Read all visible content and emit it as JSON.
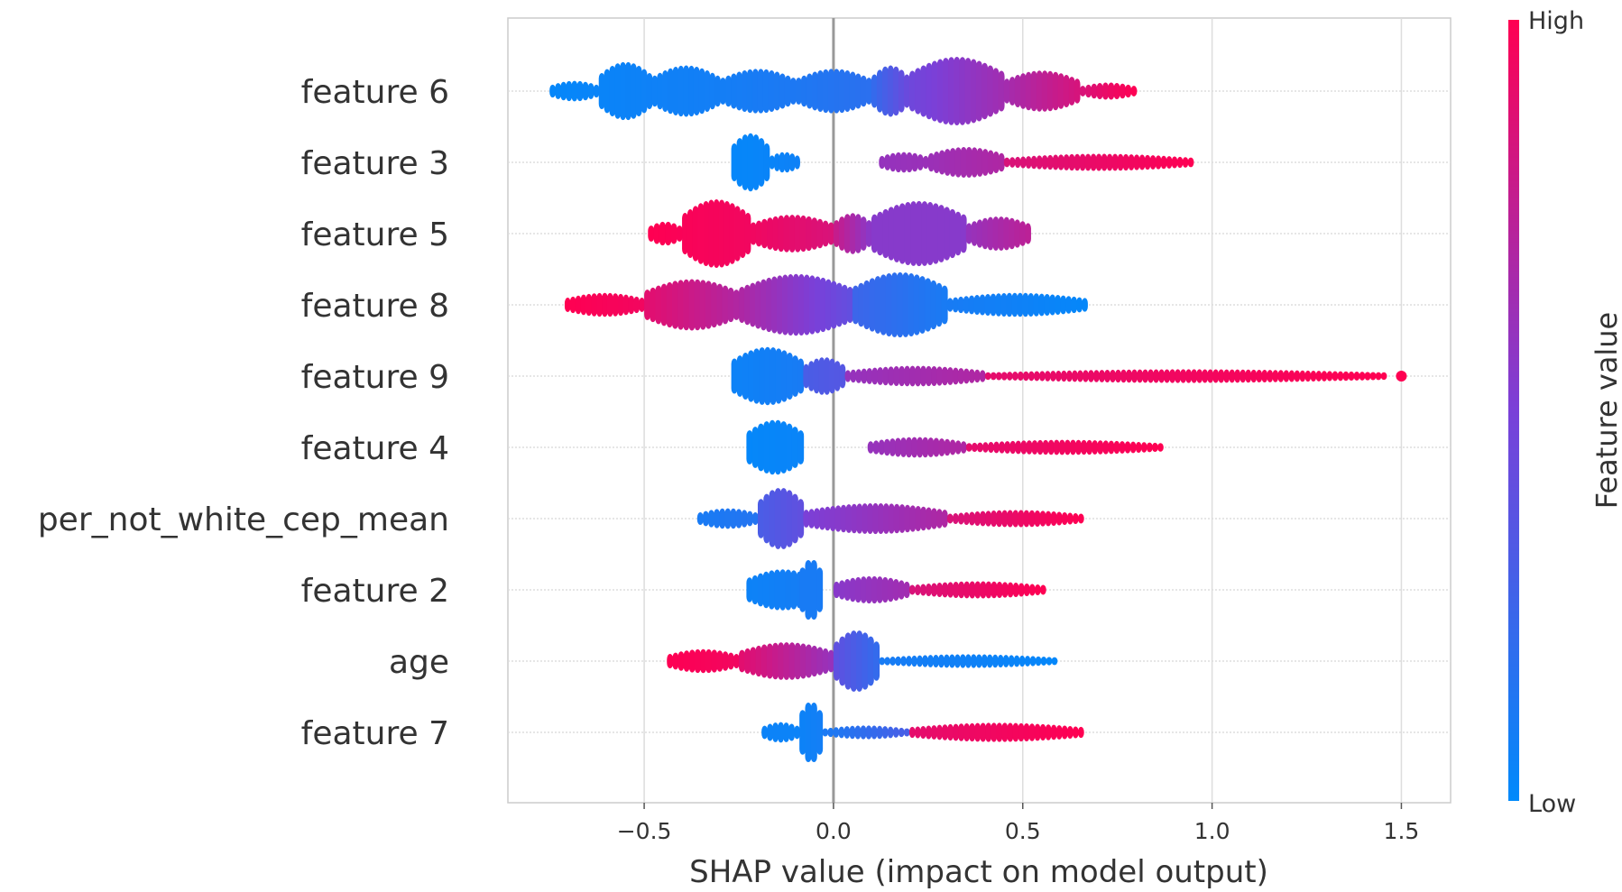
{
  "chart_data": {
    "type": "scatter",
    "subtype": "shap-beeswarm",
    "xlabel": "SHAP value (impact on model output)",
    "xlim": [
      -0.86,
      1.63
    ],
    "xticks": [
      {
        "value": -0.5,
        "label": "−0.5"
      },
      {
        "value": 0.0,
        "label": "0.0"
      },
      {
        "value": 0.5,
        "label": "0.5"
      },
      {
        "value": 1.0,
        "label": "1.0"
      },
      {
        "value": 1.5,
        "label": "1.5"
      }
    ],
    "grid": true,
    "colorbar": {
      "title": "Feature value",
      "high_label": "High",
      "low_label": "Low",
      "low_color": "#008afb",
      "high_color": "#ff0052"
    },
    "features": [
      {
        "name": "feature 6",
        "segments": [
          {
            "x0": -0.75,
            "x1": -0.62,
            "h": 0.3,
            "f0": 0.02,
            "f1": 0.04
          },
          {
            "x0": -0.62,
            "x1": -0.48,
            "h": 0.85,
            "f0": 0.04,
            "f1": 0.06
          },
          {
            "x0": -0.48,
            "x1": -0.3,
            "h": 0.75,
            "f0": 0.06,
            "f1": 0.08
          },
          {
            "x0": -0.3,
            "x1": -0.1,
            "h": 0.65,
            "f0": 0.08,
            "f1": 0.12
          },
          {
            "x0": -0.1,
            "x1": 0.1,
            "h": 0.65,
            "f0": 0.12,
            "f1": 0.18
          },
          {
            "x0": 0.1,
            "x1": 0.2,
            "h": 0.75,
            "f0": 0.2,
            "f1": 0.45
          },
          {
            "x0": 0.2,
            "x1": 0.45,
            "h": 1.0,
            "f0": 0.45,
            "f1": 0.65
          },
          {
            "x0": 0.45,
            "x1": 0.65,
            "h": 0.6,
            "f0": 0.65,
            "f1": 0.85
          },
          {
            "x0": 0.65,
            "x1": 0.8,
            "h": 0.25,
            "f0": 0.85,
            "f1": 1.0
          }
        ]
      },
      {
        "name": "feature 3",
        "segments": [
          {
            "x0": -0.27,
            "x1": -0.17,
            "h": 0.85,
            "f0": 0.02,
            "f1": 0.04
          },
          {
            "x0": -0.17,
            "x1": -0.09,
            "h": 0.3,
            "f0": 0.04,
            "f1": 0.06
          },
          {
            "x0": 0.12,
            "x1": 0.25,
            "h": 0.3,
            "f0": 0.6,
            "f1": 0.62
          },
          {
            "x0": 0.25,
            "x1": 0.45,
            "h": 0.45,
            "f0": 0.62,
            "f1": 0.7
          },
          {
            "x0": 0.45,
            "x1": 0.95,
            "h": 0.25,
            "f0": 0.85,
            "f1": 1.0
          }
        ]
      },
      {
        "name": "feature 5",
        "segments": [
          {
            "x0": -0.49,
            "x1": -0.4,
            "h": 0.35,
            "f0": 1.0,
            "f1": 0.98
          },
          {
            "x0": -0.4,
            "x1": -0.22,
            "h": 1.0,
            "f0": 0.98,
            "f1": 0.95
          },
          {
            "x0": -0.22,
            "x1": 0.0,
            "h": 0.55,
            "f0": 0.95,
            "f1": 0.85
          },
          {
            "x0": 0.0,
            "x1": 0.1,
            "h": 0.6,
            "f0": 0.8,
            "f1": 0.55
          },
          {
            "x0": 0.1,
            "x1": 0.35,
            "h": 0.95,
            "f0": 0.55,
            "f1": 0.55
          },
          {
            "x0": 0.35,
            "x1": 0.52,
            "h": 0.5,
            "f0": 0.6,
            "f1": 0.75
          }
        ]
      },
      {
        "name": "feature 8",
        "segments": [
          {
            "x0": -0.71,
            "x1": -0.5,
            "h": 0.35,
            "f0": 1.0,
            "f1": 0.95
          },
          {
            "x0": -0.5,
            "x1": -0.25,
            "h": 0.75,
            "f0": 0.9,
            "f1": 0.7
          },
          {
            "x0": -0.25,
            "x1": 0.05,
            "h": 0.9,
            "f0": 0.7,
            "f1": 0.4
          },
          {
            "x0": 0.05,
            "x1": 0.3,
            "h": 0.95,
            "f0": 0.25,
            "f1": 0.1
          },
          {
            "x0": 0.3,
            "x1": 0.67,
            "h": 0.35,
            "f0": 0.1,
            "f1": 0.02
          }
        ]
      },
      {
        "name": "feature 9",
        "segments": [
          {
            "x0": -0.27,
            "x1": -0.08,
            "h": 0.85,
            "f0": 0.05,
            "f1": 0.1
          },
          {
            "x0": -0.08,
            "x1": 0.03,
            "h": 0.55,
            "f0": 0.3,
            "f1": 0.35
          },
          {
            "x0": 0.03,
            "x1": 0.4,
            "h": 0.3,
            "f0": 0.6,
            "f1": 0.7
          },
          {
            "x0": 0.4,
            "x1": 1.46,
            "h": 0.2,
            "f0": 0.9,
            "f1": 1.0
          }
        ]
      },
      {
        "name": "feature 4",
        "segments": [
          {
            "x0": -0.23,
            "x1": -0.08,
            "h": 0.8,
            "f0": 0.02,
            "f1": 0.04
          },
          {
            "x0": 0.09,
            "x1": 0.35,
            "h": 0.3,
            "f0": 0.6,
            "f1": 0.7
          },
          {
            "x0": 0.35,
            "x1": 0.87,
            "h": 0.22,
            "f0": 0.9,
            "f1": 1.0
          }
        ]
      },
      {
        "name": "per_not_white_cep_mean",
        "segments": [
          {
            "x0": -0.36,
            "x1": -0.2,
            "h": 0.3,
            "f0": 0.1,
            "f1": 0.15
          },
          {
            "x0": -0.2,
            "x1": -0.08,
            "h": 0.9,
            "f0": 0.3,
            "f1": 0.4
          },
          {
            "x0": -0.08,
            "x1": 0.3,
            "h": 0.45,
            "f0": 0.5,
            "f1": 0.7
          },
          {
            "x0": 0.3,
            "x1": 0.66,
            "h": 0.25,
            "f0": 0.85,
            "f1": 1.0
          }
        ]
      },
      {
        "name": "feature 2",
        "segments": [
          {
            "x0": -0.23,
            "x1": -0.04,
            "h": 0.6,
            "f0": 0.05,
            "f1": 0.1
          },
          {
            "x0": -0.09,
            "x1": -0.03,
            "h": 0.9,
            "f0": 0.1,
            "f1": 0.1
          },
          {
            "x0": 0.0,
            "x1": 0.2,
            "h": 0.4,
            "f0": 0.55,
            "f1": 0.65
          },
          {
            "x0": 0.2,
            "x1": 0.56,
            "h": 0.25,
            "f0": 0.85,
            "f1": 1.0
          }
        ]
      },
      {
        "name": "age",
        "segments": [
          {
            "x0": -0.44,
            "x1": -0.25,
            "h": 0.35,
            "f0": 1.0,
            "f1": 0.95
          },
          {
            "x0": -0.25,
            "x1": 0.0,
            "h": 0.55,
            "f0": 0.9,
            "f1": 0.6
          },
          {
            "x0": 0.0,
            "x1": 0.12,
            "h": 0.9,
            "f0": 0.4,
            "f1": 0.2
          },
          {
            "x0": 0.12,
            "x1": 0.59,
            "h": 0.2,
            "f0": 0.1,
            "f1": 0.02
          }
        ]
      },
      {
        "name": "feature 7",
        "segments": [
          {
            "x0": -0.19,
            "x1": -0.09,
            "h": 0.3,
            "f0": 0.05,
            "f1": 0.05
          },
          {
            "x0": -0.09,
            "x1": -0.03,
            "h": 0.9,
            "f0": 0.05,
            "f1": 0.08
          },
          {
            "x0": -0.03,
            "x1": 0.2,
            "h": 0.2,
            "f0": 0.1,
            "f1": 0.3
          },
          {
            "x0": 0.2,
            "x1": 0.66,
            "h": 0.28,
            "f0": 0.9,
            "f1": 1.0
          }
        ]
      }
    ],
    "outliers": [
      {
        "feature": "feature 9",
        "x": 1.5,
        "f": 1.0
      }
    ]
  }
}
